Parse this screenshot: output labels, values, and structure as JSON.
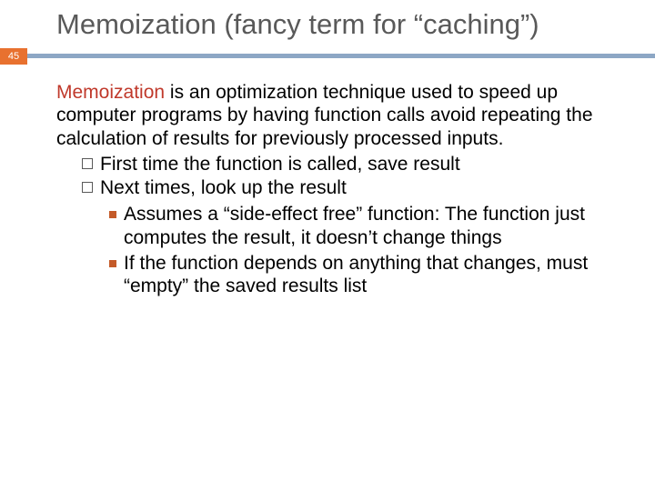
{
  "slide": {
    "number": "45",
    "title": "Memoization (fancy term for “caching”)",
    "para_red": "Memoization",
    "para_rest": " is an optimization technique used to speed up computer programs by having function calls avoid repeating the calculation of results for previously processed inputs.",
    "b1": [
      "First time the function is called, save result",
      "Next times, look up the result"
    ],
    "b2": [
      "Assumes a “side-effect free” function: The function just computes the result, it doesn’t change things",
      "If the function depends on anything that changes, must “empty” the saved results list"
    ]
  },
  "style": {
    "accent_color": "#e8712f",
    "divider_color": "#8da7c5",
    "title_color": "#595959",
    "red_color": "#c0392b",
    "square_bullet_color": "#c45a28",
    "background": "#ffffff",
    "title_fontsize": 31,
    "body_fontsize": 21
  }
}
